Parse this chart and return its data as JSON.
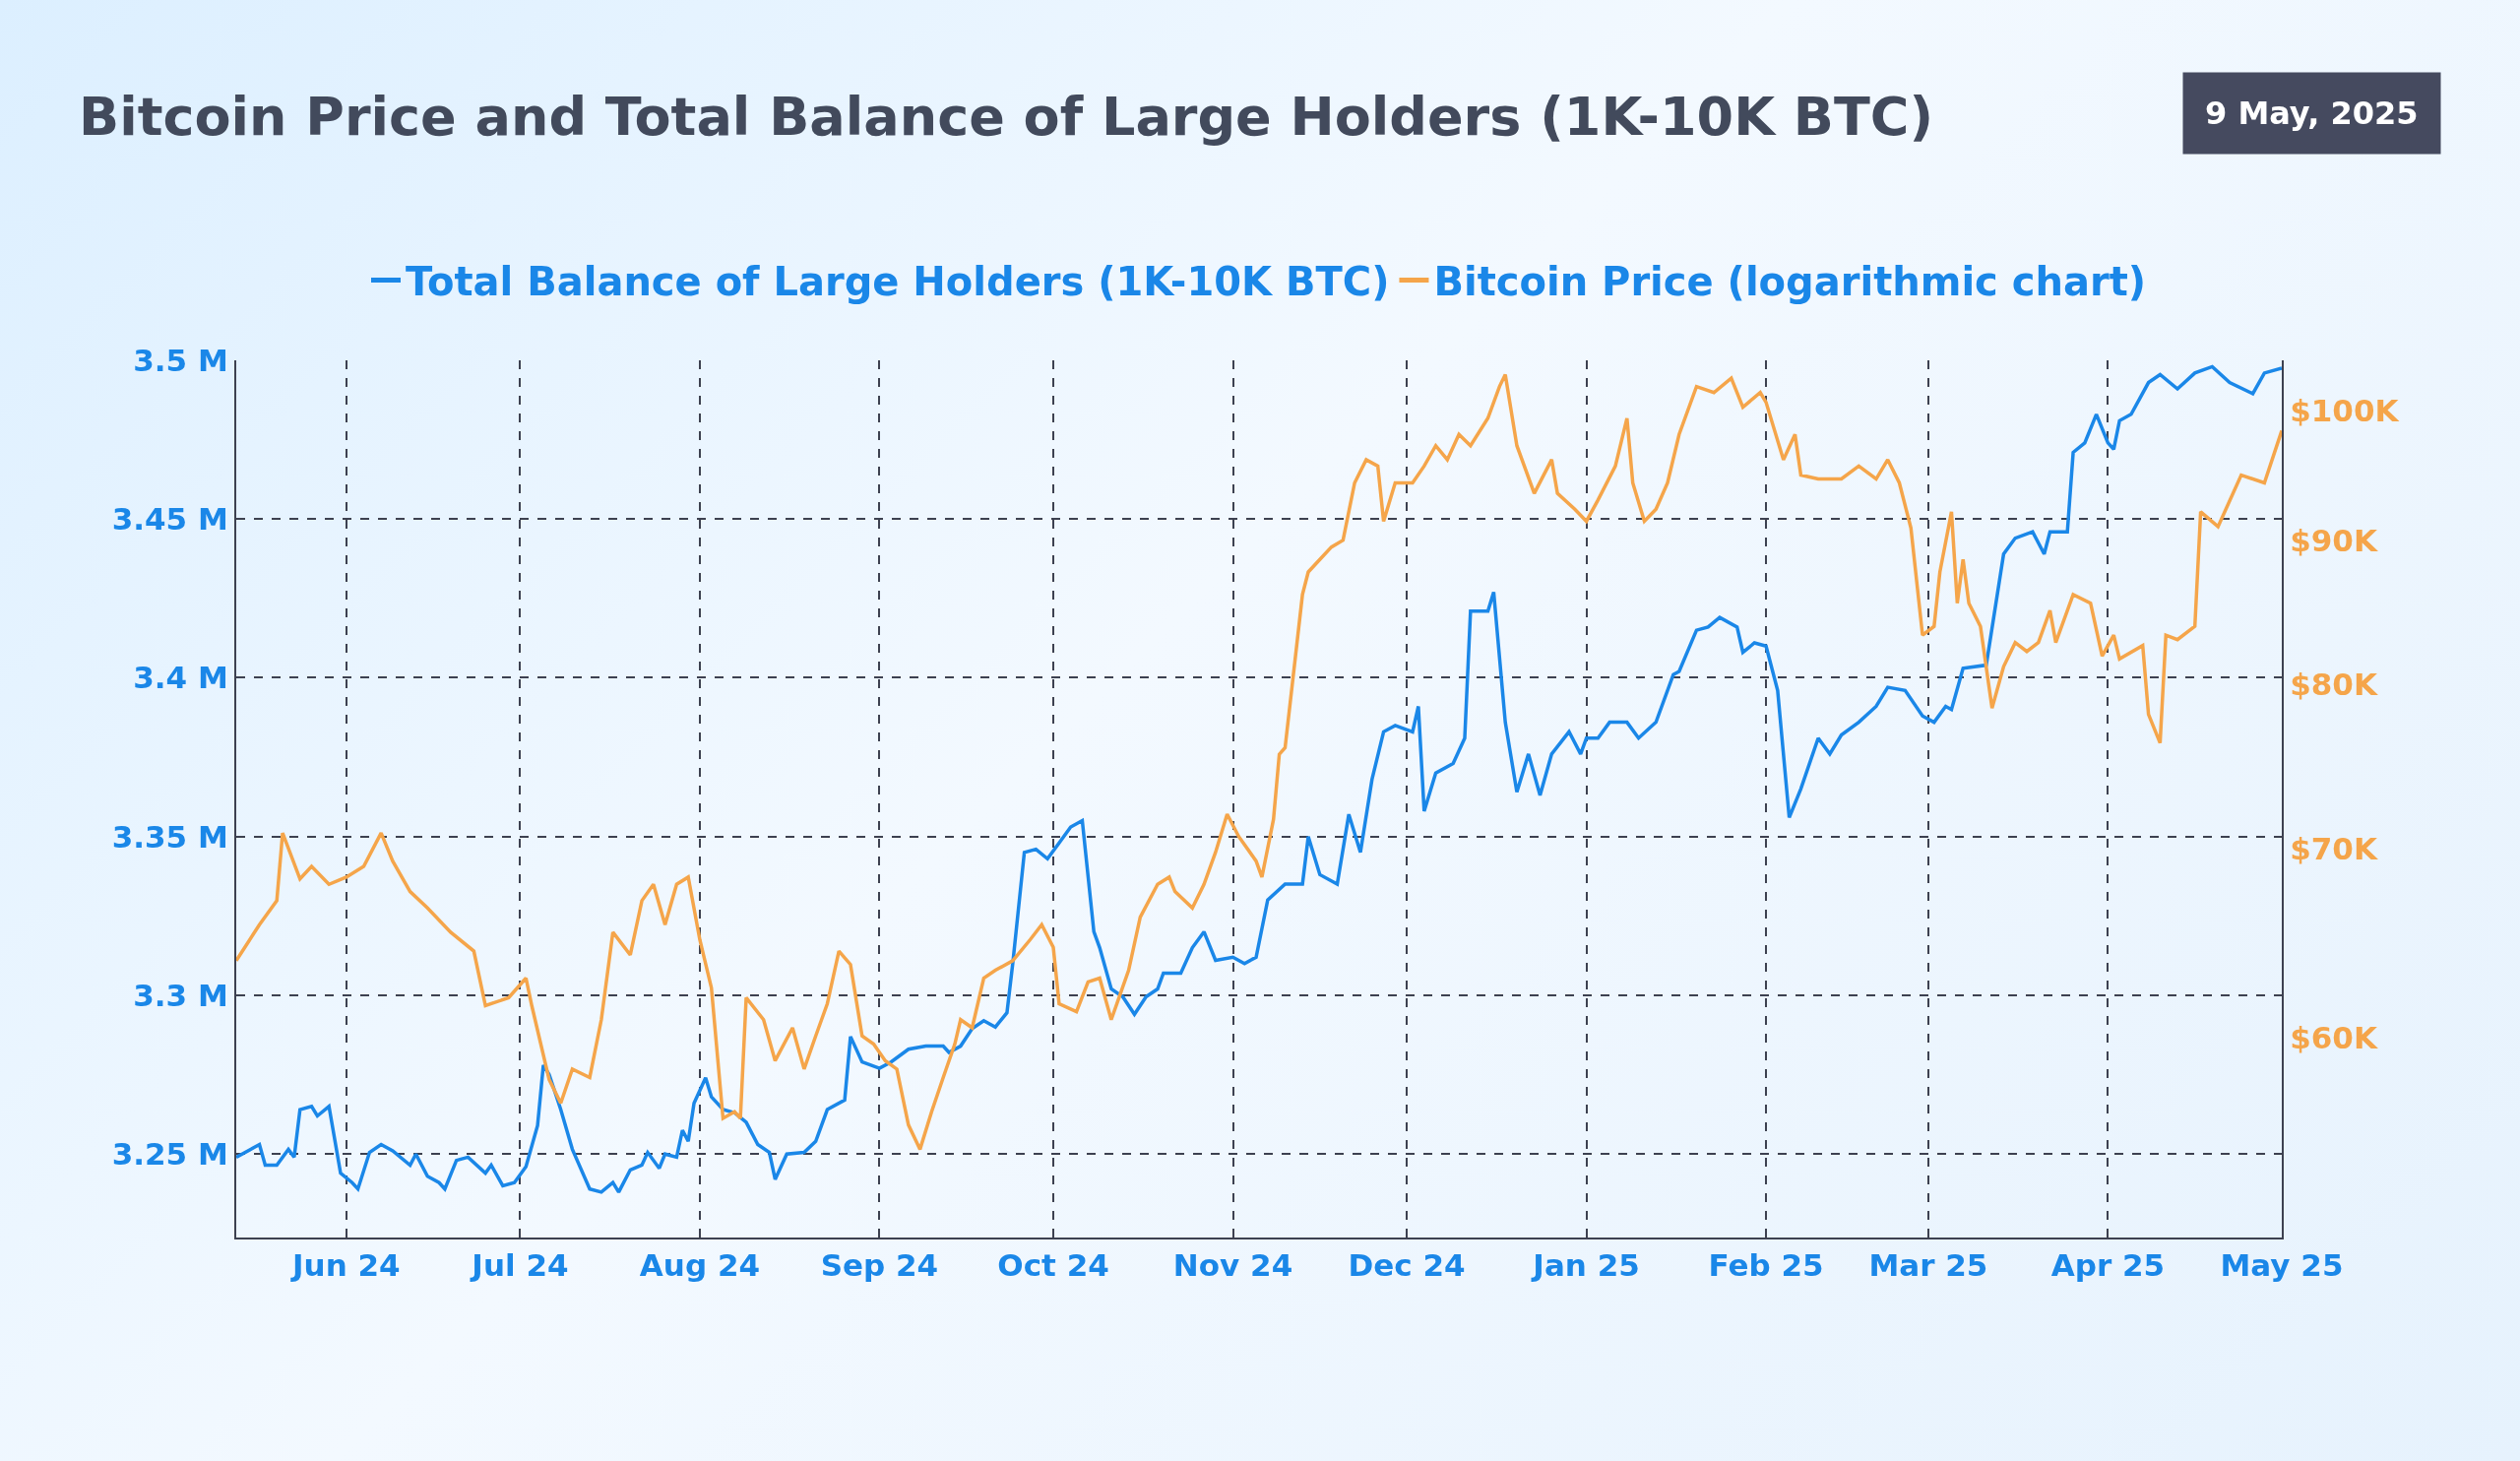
{
  "chart_data": {
    "type": "line",
    "title": "Bitcoin Price and Total Balance of Large Holders (1K-10K BTC)",
    "annotations": [
      "9 May, 2025"
    ],
    "legend": "top",
    "grid": true,
    "line_style": "solid",
    "marker": "none",
    "log": "y2",
    "xlim": [
      "2024-05-13",
      "2025-05-01"
    ],
    "xticks": [
      {
        "value": "2024-06-01",
        "label": "Jun 24"
      },
      {
        "value": "2024-07-01",
        "label": "Jul 24"
      },
      {
        "value": "2024-08-01",
        "label": "Aug 24"
      },
      {
        "value": "2024-09-01",
        "label": "Sep 24"
      },
      {
        "value": "2024-10-01",
        "label": "Oct 24"
      },
      {
        "value": "2024-11-01",
        "label": "Nov 24"
      },
      {
        "value": "2024-12-01",
        "label": "Dec 24"
      },
      {
        "value": "2025-01-01",
        "label": "Jan 25"
      },
      {
        "value": "2025-02-01",
        "label": "Feb 25"
      },
      {
        "value": "2025-03-01",
        "label": "Mar 25"
      },
      {
        "value": "2025-04-01",
        "label": "Apr 25"
      },
      {
        "value": "2025-05-01",
        "label": "May 25"
      }
    ],
    "ylim": [
      3.2237,
      3.5
    ],
    "yticks": [
      {
        "value": 3.25,
        "label": "3.25 M"
      },
      {
        "value": 3.3,
        "label": "3.3 M"
      },
      {
        "value": 3.35,
        "label": "3.35 M"
      },
      {
        "value": 3.4,
        "label": "3.4 M"
      },
      {
        "value": 3.45,
        "label": "3.45 M"
      },
      {
        "value": 3.5,
        "label": "3.5 M"
      }
    ],
    "y2lim": [
      51000,
      104200
    ],
    "y2ticks": [
      {
        "value": 60000,
        "label": "$60K"
      },
      {
        "value": 70000,
        "label": "$70K"
      },
      {
        "value": 80000,
        "label": "$80K"
      },
      {
        "value": 90000,
        "label": "$90K"
      },
      {
        "value": 100000,
        "label": "$100K"
      }
    ],
    "series": [
      {
        "name": "Total Balance of Large Holders (1K-10K BTC)",
        "color": "#1a87e8",
        "x": [
          "2024-05-13",
          "2024-05-17",
          "2024-05-18",
          "2024-05-20",
          "2024-05-22",
          "2024-05-23",
          "2024-05-24",
          "2024-05-26",
          "2024-05-27",
          "2024-05-29",
          "2024-05-31",
          "2024-06-02",
          "2024-06-03",
          "2024-06-05",
          "2024-06-07",
          "2024-06-09",
          "2024-06-12",
          "2024-06-13",
          "2024-06-15",
          "2024-06-17",
          "2024-06-18",
          "2024-06-20",
          "2024-06-22",
          "2024-06-25",
          "2024-06-26",
          "2024-06-28",
          "2024-06-30",
          "2024-07-02",
          "2024-07-04",
          "2024-07-05",
          "2024-07-06",
          "2024-07-08",
          "2024-07-10",
          "2024-07-13",
          "2024-07-15",
          "2024-07-17",
          "2024-07-18",
          "2024-07-20",
          "2024-07-22",
          "2024-07-23",
          "2024-07-25",
          "2024-07-26",
          "2024-07-28",
          "2024-07-29",
          "2024-07-30",
          "2024-07-31",
          "2024-08-02",
          "2024-08-03",
          "2024-08-05",
          "2024-08-07",
          "2024-08-09",
          "2024-08-11",
          "2024-08-13",
          "2024-08-14",
          "2024-08-16",
          "2024-08-19",
          "2024-08-21",
          "2024-08-23",
          "2024-08-26",
          "2024-08-27",
          "2024-08-29",
          "2024-09-01",
          "2024-09-03",
          "2024-09-06",
          "2024-09-09",
          "2024-09-12",
          "2024-09-13",
          "2024-09-15",
          "2024-09-17",
          "2024-09-19",
          "2024-09-21",
          "2024-09-23",
          "2024-09-24",
          "2024-09-26",
          "2024-09-28",
          "2024-09-30",
          "2024-10-02",
          "2024-10-04",
          "2024-10-06",
          "2024-10-08",
          "2024-10-09",
          "2024-10-11",
          "2024-10-13",
          "2024-10-15",
          "2024-10-17",
          "2024-10-19",
          "2024-10-20",
          "2024-10-23",
          "2024-10-25",
          "2024-10-27",
          "2024-10-29",
          "2024-11-01",
          "2024-11-03",
          "2024-11-05",
          "2024-11-07",
          "2024-11-10",
          "2024-11-13",
          "2024-11-14",
          "2024-11-16",
          "2024-11-19",
          "2024-11-21",
          "2024-11-23",
          "2024-11-25",
          "2024-11-27",
          "2024-11-29",
          "2024-12-02",
          "2024-12-03",
          "2024-12-04",
          "2024-12-06",
          "2024-12-09",
          "2024-12-11",
          "2024-12-12",
          "2024-12-15",
          "2024-12-16",
          "2024-12-18",
          "2024-12-20",
          "2024-12-22",
          "2024-12-24",
          "2024-12-26",
          "2024-12-29",
          "2024-12-31",
          "2025-01-01",
          "2025-01-03",
          "2025-01-05",
          "2025-01-08",
          "2025-01-10",
          "2025-01-13",
          "2025-01-16",
          "2025-01-17",
          "2025-01-20",
          "2025-01-22",
          "2025-01-24",
          "2025-01-27",
          "2025-01-28",
          "2025-01-30",
          "2025-02-01",
          "2025-02-03",
          "2025-02-05",
          "2025-02-07",
          "2025-02-10",
          "2025-02-12",
          "2025-02-14",
          "2025-02-17",
          "2025-02-20",
          "2025-02-22",
          "2025-02-25",
          "2025-02-28",
          "2025-03-02",
          "2025-03-04",
          "2025-03-05",
          "2025-03-07",
          "2025-03-11",
          "2025-03-14",
          "2025-03-16",
          "2025-03-19",
          "2025-03-21",
          "2025-03-22",
          "2025-03-25",
          "2025-03-26",
          "2025-03-28",
          "2025-03-30",
          "2025-04-01",
          "2025-04-02",
          "2025-04-03",
          "2025-04-05",
          "2025-04-08",
          "2025-04-10",
          "2025-04-13",
          "2025-04-16",
          "2025-04-19",
          "2025-04-22",
          "2025-04-26",
          "2025-04-28",
          "2025-05-01"
        ],
        "values": [
          3.249,
          3.253,
          3.2465,
          3.2465,
          3.2515,
          3.249,
          3.264,
          3.265,
          3.262,
          3.265,
          3.244,
          3.241,
          3.239,
          3.2505,
          3.253,
          3.251,
          3.2465,
          3.25,
          3.243,
          3.241,
          3.239,
          3.248,
          3.249,
          3.244,
          3.2465,
          3.24,
          3.241,
          3.246,
          3.259,
          3.278,
          3.275,
          3.264,
          3.2515,
          3.239,
          3.238,
          3.241,
          3.238,
          3.245,
          3.2465,
          3.2505,
          3.2455,
          3.25,
          3.249,
          3.2575,
          3.254,
          3.266,
          3.274,
          3.268,
          3.264,
          3.263,
          3.26,
          3.253,
          3.2505,
          3.242,
          3.25,
          3.2505,
          3.254,
          3.264,
          3.267,
          3.287,
          3.279,
          3.277,
          3.279,
          3.283,
          3.284,
          3.284,
          3.282,
          3.284,
          3.2895,
          3.292,
          3.29,
          3.2945,
          3.31,
          3.345,
          3.346,
          3.343,
          3.348,
          3.353,
          3.355,
          3.32,
          3.315,
          3.302,
          3.2995,
          3.294,
          3.2995,
          3.302,
          3.307,
          3.307,
          3.315,
          3.32,
          3.311,
          3.312,
          3.31,
          3.312,
          3.33,
          3.335,
          3.335,
          3.35,
          3.338,
          3.335,
          3.357,
          3.345,
          3.368,
          3.383,
          3.385,
          3.383,
          3.391,
          3.358,
          3.37,
          3.373,
          3.381,
          3.421,
          3.421,
          3.427,
          3.386,
          3.364,
          3.376,
          3.363,
          3.376,
          3.383,
          3.376,
          3.381,
          3.381,
          3.386,
          3.386,
          3.381,
          3.386,
          3.401,
          3.402,
          3.415,
          3.416,
          3.419,
          3.416,
          3.408,
          3.411,
          3.41,
          3.396,
          3.356,
          3.365,
          3.381,
          3.376,
          3.382,
          3.386,
          3.391,
          3.397,
          3.396,
          3.388,
          3.386,
          3.391,
          3.39,
          3.403,
          3.404,
          3.439,
          3.444,
          3.446,
          3.439,
          3.446,
          3.446,
          3.471,
          3.474,
          3.483,
          3.474,
          3.472,
          3.481,
          3.483,
          3.493,
          3.4955,
          3.491,
          3.496,
          3.498,
          3.493,
          3.4895,
          3.496,
          3.4975
        ]
      },
      {
        "name": "Bitcoin Price (logarithmic chart)",
        "color": "#f5a54a",
        "axis": "y2",
        "x": [
          "2024-05-13",
          "2024-05-17",
          "2024-05-20",
          "2024-05-21",
          "2024-05-24",
          "2024-05-26",
          "2024-05-29",
          "2024-06-01",
          "2024-06-04",
          "2024-06-07",
          "2024-06-09",
          "2024-06-12",
          "2024-06-15",
          "2024-06-19",
          "2024-06-23",
          "2024-06-25",
          "2024-06-29",
          "2024-07-02",
          "2024-07-03",
          "2024-07-06",
          "2024-07-08",
          "2024-07-10",
          "2024-07-13",
          "2024-07-15",
          "2024-07-17",
          "2024-07-20",
          "2024-07-22",
          "2024-07-24",
          "2024-07-26",
          "2024-07-28",
          "2024-07-30",
          "2024-08-01",
          "2024-08-03",
          "2024-08-05",
          "2024-08-07",
          "2024-08-08",
          "2024-08-09",
          "2024-08-12",
          "2024-08-14",
          "2024-08-17",
          "2024-08-19",
          "2024-08-21",
          "2024-08-23",
          "2024-08-25",
          "2024-08-27",
          "2024-08-29",
          "2024-08-31",
          "2024-09-02",
          "2024-09-04",
          "2024-09-06",
          "2024-09-08",
          "2024-09-10",
          "2024-09-12",
          "2024-09-14",
          "2024-09-15",
          "2024-09-17",
          "2024-09-19",
          "2024-09-21",
          "2024-09-24",
          "2024-09-27",
          "2024-09-29",
          "2024-10-01",
          "2024-10-02",
          "2024-10-05",
          "2024-10-07",
          "2024-10-09",
          "2024-10-11",
          "2024-10-14",
          "2024-10-16",
          "2024-10-19",
          "2024-10-21",
          "2024-10-22",
          "2024-10-25",
          "2024-10-27",
          "2024-10-29",
          "2024-10-31",
          "2024-11-02",
          "2024-11-05",
          "2024-11-06",
          "2024-11-08",
          "2024-11-09",
          "2024-11-10",
          "2024-11-13",
          "2024-11-14",
          "2024-11-16",
          "2024-11-18",
          "2024-11-20",
          "2024-11-22",
          "2024-11-24",
          "2024-11-26",
          "2024-11-27",
          "2024-11-29",
          "2024-12-02",
          "2024-12-04",
          "2024-12-06",
          "2024-12-08",
          "2024-12-10",
          "2024-12-12",
          "2024-12-15",
          "2024-12-17",
          "2024-12-18",
          "2024-12-20",
          "2024-12-23",
          "2024-12-26",
          "2024-12-27",
          "2024-12-30",
          "2025-01-01",
          "2025-01-03",
          "2025-01-06",
          "2025-01-08",
          "2025-01-09",
          "2025-01-11",
          "2025-01-13",
          "2025-01-15",
          "2025-01-17",
          "2025-01-20",
          "2025-01-23",
          "2025-01-26",
          "2025-01-28",
          "2025-01-31",
          "2025-02-01",
          "2025-02-04",
          "2025-02-06",
          "2025-02-07",
          "2025-02-10",
          "2025-02-14",
          "2025-02-17",
          "2025-02-20",
          "2025-02-22",
          "2025-02-24",
          "2025-02-26",
          "2025-02-28",
          "2025-03-02",
          "2025-03-03",
          "2025-03-05",
          "2025-03-06",
          "2025-03-07",
          "2025-03-08",
          "2025-03-10",
          "2025-03-12",
          "2025-03-14",
          "2025-03-16",
          "2025-03-18",
          "2025-03-20",
          "2025-03-22",
          "2025-03-23",
          "2025-03-26",
          "2025-03-29",
          "2025-03-31",
          "2025-04-02",
          "2025-04-03",
          "2025-04-07",
          "2025-04-08",
          "2025-04-10",
          "2025-04-11",
          "2025-04-13",
          "2025-04-16",
          "2025-04-17",
          "2025-04-20",
          "2025-04-24",
          "2025-04-28",
          "2025-05-01"
        ],
        "values": [
          63900,
          65800,
          67100,
          70900,
          68300,
          69000,
          68000,
          68400,
          69000,
          70900,
          69300,
          67600,
          66700,
          65400,
          64400,
          61600,
          62000,
          63000,
          61600,
          58000,
          56900,
          58500,
          58100,
          60900,
          65400,
          64200,
          67100,
          68000,
          65800,
          68000,
          68400,
          65000,
          62500,
          56200,
          56500,
          56200,
          62000,
          60900,
          58900,
          60500,
          58500,
          60100,
          61700,
          64400,
          63700,
          60100,
          59700,
          58900,
          58500,
          55900,
          54800,
          56500,
          58100,
          59700,
          60900,
          60500,
          63000,
          63400,
          63900,
          65000,
          65800,
          64600,
          61700,
          61300,
          62800,
          63000,
          60900,
          63400,
          66200,
          68000,
          68400,
          67600,
          66700,
          68000,
          69800,
          72000,
          70700,
          69300,
          68400,
          71700,
          75600,
          76000,
          86100,
          87700,
          88600,
          89500,
          90000,
          94300,
          96100,
          95600,
          91400,
          94300,
          94300,
          95600,
          97200,
          96100,
          98100,
          97200,
          99400,
          102000,
          103000,
          97200,
          93500,
          96100,
          93500,
          92300,
          91400,
          93000,
          95600,
          99400,
          94300,
          91400,
          92300,
          94300,
          98100,
          102000,
          101500,
          102700,
          100300,
          101500,
          100700,
          96100,
          98100,
          94900,
          94600,
          94600,
          95600,
          94600,
          96100,
          94300,
          90900,
          83300,
          83900,
          87700,
          92100,
          85500,
          88600,
          85500,
          83900,
          78500,
          81200,
          82800,
          82200,
          82800,
          85000,
          82800,
          86100,
          85500,
          81900,
          83300,
          81700,
          82600,
          78100,
          76300,
          83300,
          83000,
          83900,
          92100,
          91000,
          94900,
          94300,
          98400
        ]
      }
    ]
  }
}
